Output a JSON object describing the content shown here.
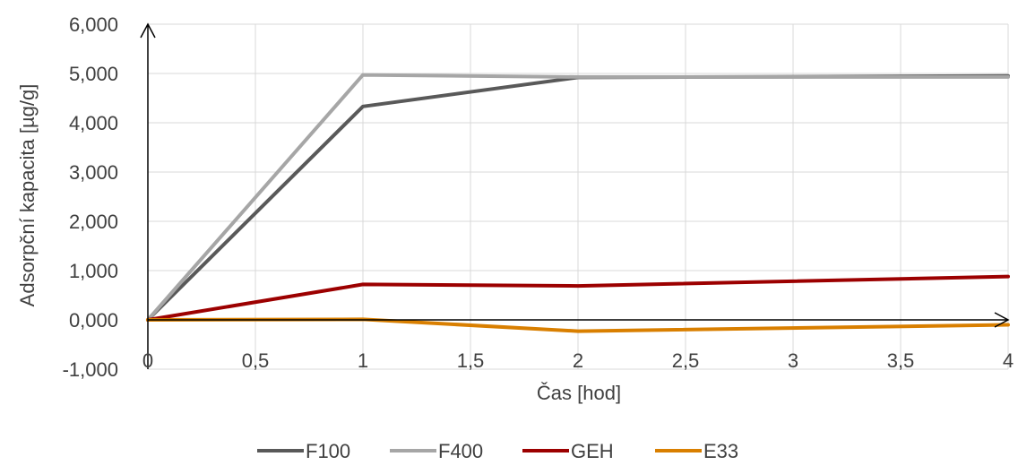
{
  "chart_data": {
    "type": "line",
    "title": "",
    "xlabel": "Čas [hod]",
    "ylabel": "Adsorpční kapacita [µg/g]",
    "xlim": [
      0,
      4
    ],
    "ylim": [
      -1,
      6
    ],
    "x_ticks": [
      0,
      0.5,
      1,
      1.5,
      2,
      2.5,
      3,
      3.5,
      4
    ],
    "x_tick_labels": [
      "0",
      "0,5",
      "1",
      "1,5",
      "2",
      "2,5",
      "3",
      "3,5",
      "4"
    ],
    "y_ticks": [
      -1,
      0,
      1,
      2,
      3,
      4,
      5,
      6
    ],
    "y_tick_labels": [
      "-1,000",
      "0,000",
      "1,000",
      "2,000",
      "3,000",
      "4,000",
      "5,000",
      "6,000"
    ],
    "grid": true,
    "legend_position": "bottom",
    "x": [
      0,
      1,
      2,
      4
    ],
    "series": [
      {
        "name": "F100",
        "color": "#595959",
        "values": [
          0,
          4.33,
          4.92,
          4.95
        ]
      },
      {
        "name": "F400",
        "color": "#a6a6a6",
        "values": [
          0,
          4.97,
          4.93,
          4.93
        ]
      },
      {
        "name": "GEH",
        "color": "#9c0000",
        "values": [
          0,
          0.72,
          0.69,
          0.88
        ]
      },
      {
        "name": "E33",
        "color": "#d97f00",
        "values": [
          0,
          0.01,
          -0.23,
          -0.1
        ]
      }
    ]
  }
}
